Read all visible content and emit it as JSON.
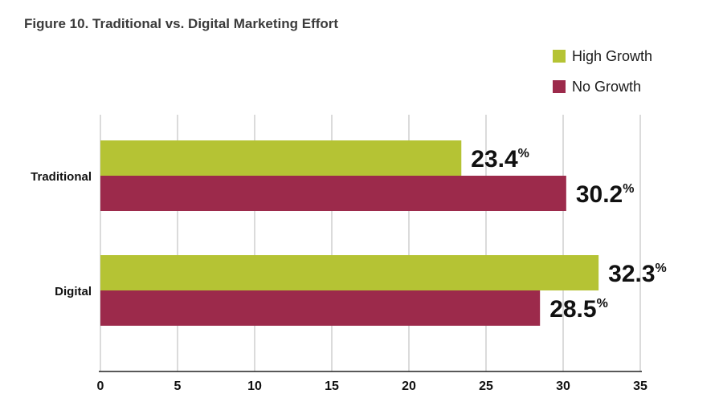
{
  "chart_data": {
    "type": "bar",
    "orientation": "horizontal",
    "title": "Figure 10. Traditional vs. Digital Marketing Effort",
    "categories": [
      "Traditional",
      "Digital"
    ],
    "series": [
      {
        "name": "High Growth",
        "values": [
          23.4,
          32.3
        ],
        "color": "#b5c334"
      },
      {
        "name": "No Growth",
        "values": [
          30.2,
          28.5
        ],
        "color": "#9c2a4b"
      }
    ],
    "value_labels": [
      [
        "23.4",
        "32.3"
      ],
      [
        "30.2",
        "28.5"
      ]
    ],
    "value_unit": "%",
    "xlim": [
      0,
      35
    ],
    "xticks": [
      "0",
      "5",
      "10",
      "15",
      "20",
      "25",
      "30",
      "35"
    ],
    "xlabel": "",
    "ylabel": "",
    "grid": "vertical",
    "legend_position": "top-right"
  }
}
